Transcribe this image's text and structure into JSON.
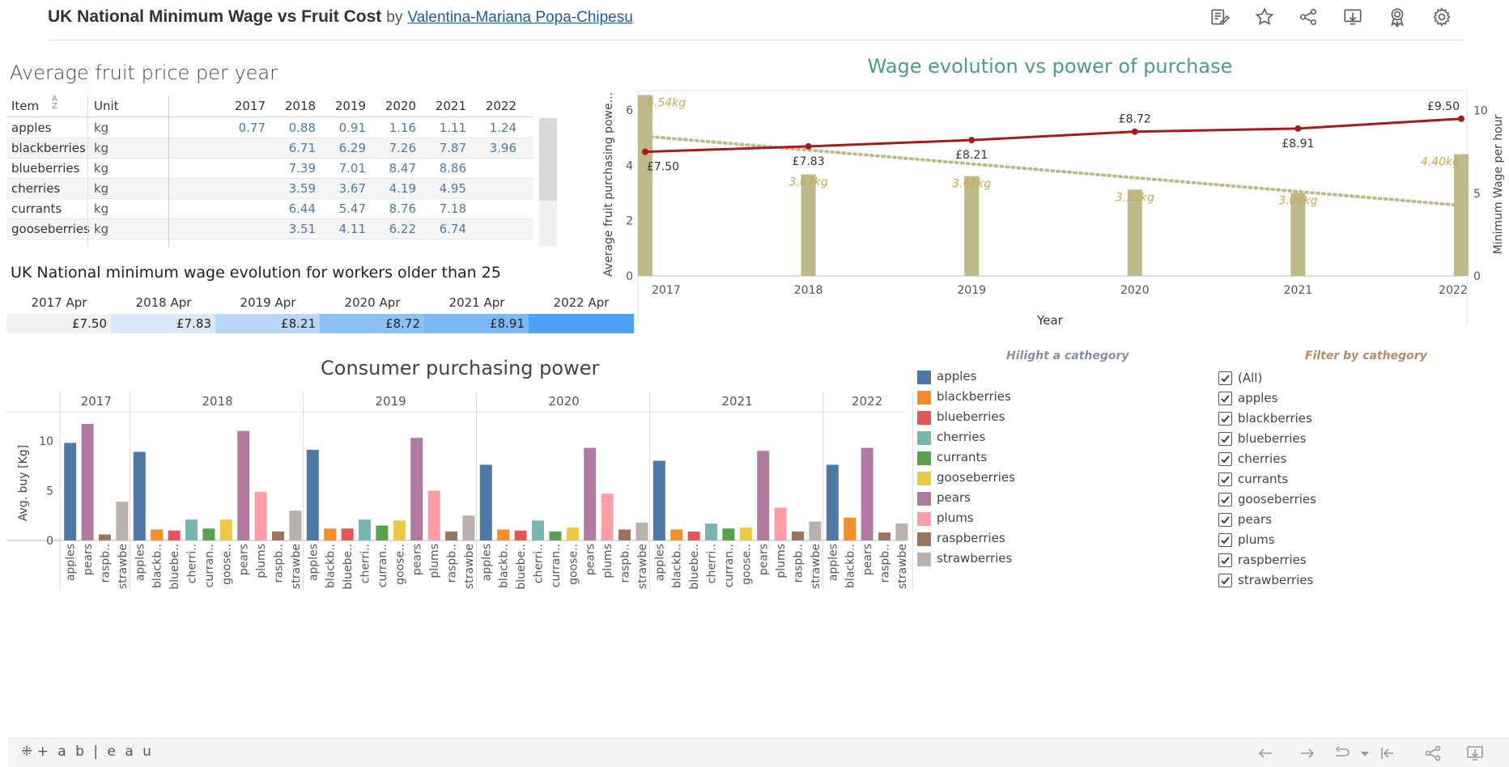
{
  "header": {
    "title": "UK National Minimum Wage vs Fruit Cost",
    "by": "by",
    "author": "Valentina-Mariana Popa-Chipesu"
  },
  "colors": {
    "apples": "#4e79a7",
    "blackberries": "#f28e2b",
    "blueberries": "#e15759",
    "cherries": "#76b7b2",
    "currants": "#59a14f",
    "gooseberries": "#edc948",
    "pears": "#b07aa1",
    "plums": "#ff9da7",
    "raspberries": "#9c755f",
    "strawberries": "#bab0ac",
    "wage_line": "#a61c1c",
    "bar_olive": "#bfb98a",
    "label_gold": "#c9a94c"
  },
  "price_table": {
    "title": "Average fruit price per year",
    "columns": [
      "Item",
      "Unit",
      "2017",
      "2018",
      "2019",
      "2020",
      "2021",
      "2022"
    ],
    "rows": [
      {
        "item": "apples",
        "unit": "kg",
        "values": [
          "0.77",
          "0.88",
          "0.91",
          "1.16",
          "1.11",
          "1.24"
        ]
      },
      {
        "item": "blackberries",
        "unit": "kg",
        "values": [
          "",
          "6.71",
          "6.29",
          "7.26",
          "7.87",
          "3.96"
        ]
      },
      {
        "item": "blueberries",
        "unit": "kg",
        "values": [
          "",
          "7.39",
          "7.01",
          "8.47",
          "8.86",
          ""
        ]
      },
      {
        "item": "cherries",
        "unit": "kg",
        "values": [
          "",
          "3.59",
          "3.67",
          "4.19",
          "4.95",
          ""
        ]
      },
      {
        "item": "currants",
        "unit": "kg",
        "values": [
          "",
          "6.44",
          "5.47",
          "8.76",
          "7.18",
          ""
        ]
      },
      {
        "item": "gooseberries",
        "unit": "kg",
        "values": [
          "",
          "3.51",
          "4.11",
          "6.22",
          "6.74",
          ""
        ]
      }
    ]
  },
  "wage_table": {
    "title": "UK National minimum wage evolution for workers older than 25",
    "columns": [
      {
        "label": "2017 Apr",
        "value": "£7.50",
        "bg": "#f2f2f2"
      },
      {
        "label": "2018 Apr",
        "value": "£7.83",
        "bg": "#dbe8f7"
      },
      {
        "label": "2019 Apr",
        "value": "£8.21",
        "bg": "#b8d6f7"
      },
      {
        "label": "2020 Apr",
        "value": "£8.72",
        "bg": "#8cc1f7"
      },
      {
        "label": "2021 Apr",
        "value": "£8.91",
        "bg": "#7ab8f7"
      },
      {
        "label": "2022 Apr",
        "value": "",
        "bg": "#4fa0f7"
      }
    ]
  },
  "wage_chart": {
    "title": "Wage evolution vs power of purchase",
    "ylabel_left": "Average fruit purchasing powe...",
    "ylabel_right": "Minimum Wage per hour",
    "xlabel": "Year",
    "chart_data": {
      "type": "bar",
      "categories": [
        "2017",
        "2018",
        "2019",
        "2020",
        "2021",
        "2022"
      ],
      "series": [
        {
          "values": [
            6.54,
            3.67,
            3.61,
            3.12,
            3.0,
            4.4
          ]
        },
        {
          "values": [
            7.5,
            7.83,
            8.21,
            8.72,
            8.91,
            9.5
          ]
        }
      ],
      "bar_labels": [
        "6.54kg",
        "3.67kg",
        "3.61kg",
        "3.12kg",
        "3.00kg",
        "4.40kg"
      ],
      "line_labels": [
        "£7.50",
        "£7.83",
        "£8.21",
        "£8.72",
        "£8.91",
        "£9.50"
      ],
      "trend": [
        5.05,
        2.55
      ],
      "left_ylim": [
        0,
        6.7
      ],
      "left_ticks": [
        "0",
        "2",
        "4",
        "6"
      ],
      "right_ylim": [
        0,
        11.2
      ],
      "right_ticks": [
        "0",
        "5",
        "10"
      ]
    }
  },
  "purchasing_chart": {
    "title": "Consumer purchasing power",
    "ylabel": "Avg. buy [Kg]",
    "y_ticks": [
      "0",
      "5",
      "10"
    ],
    "chart_data": {
      "type": "bar",
      "ylim": [
        0,
        13
      ],
      "groups": [
        {
          "year": "2017",
          "bars": [
            {
              "fruit": "apples",
              "value": 9.8
            },
            {
              "fruit": "pears",
              "value": 11.7
            },
            {
              "fruit": "raspberries",
              "value": 0.6
            },
            {
              "fruit": "strawberries",
              "value": 3.9
            }
          ]
        },
        {
          "year": "2018",
          "bars": [
            {
              "fruit": "apples",
              "value": 8.9
            },
            {
              "fruit": "blackberries",
              "value": 1.1
            },
            {
              "fruit": "blueberries",
              "value": 1.0
            },
            {
              "fruit": "cherries",
              "value": 2.1
            },
            {
              "fruit": "currants",
              "value": 1.2
            },
            {
              "fruit": "gooseberries",
              "value": 2.1
            },
            {
              "fruit": "pears",
              "value": 11.0
            },
            {
              "fruit": "plums",
              "value": 4.9
            },
            {
              "fruit": "raspberries",
              "value": 0.9
            },
            {
              "fruit": "strawberries",
              "value": 3.0
            }
          ]
        },
        {
          "year": "2019",
          "bars": [
            {
              "fruit": "apples",
              "value": 9.1
            },
            {
              "fruit": "blackberries",
              "value": 1.2
            },
            {
              "fruit": "blueberries",
              "value": 1.2
            },
            {
              "fruit": "cherries",
              "value": 2.1
            },
            {
              "fruit": "currants",
              "value": 1.5
            },
            {
              "fruit": "gooseberries",
              "value": 2.0
            },
            {
              "fruit": "pears",
              "value": 10.3
            },
            {
              "fruit": "plums",
              "value": 5.0
            },
            {
              "fruit": "raspberries",
              "value": 0.9
            },
            {
              "fruit": "strawberries",
              "value": 2.5
            }
          ]
        },
        {
          "year": "2020",
          "bars": [
            {
              "fruit": "apples",
              "value": 7.6
            },
            {
              "fruit": "blackberries",
              "value": 1.1
            },
            {
              "fruit": "blueberries",
              "value": 1.0
            },
            {
              "fruit": "cherries",
              "value": 2.0
            },
            {
              "fruit": "currants",
              "value": 0.9
            },
            {
              "fruit": "gooseberries",
              "value": 1.3
            },
            {
              "fruit": "pears",
              "value": 9.3
            },
            {
              "fruit": "plums",
              "value": 4.7
            },
            {
              "fruit": "raspberries",
              "value": 1.1
            },
            {
              "fruit": "strawberries",
              "value": 1.8
            }
          ]
        },
        {
          "year": "2021",
          "bars": [
            {
              "fruit": "apples",
              "value": 8.0
            },
            {
              "fruit": "blackberries",
              "value": 1.1
            },
            {
              "fruit": "blueberries",
              "value": 0.9
            },
            {
              "fruit": "cherries",
              "value": 1.7
            },
            {
              "fruit": "currants",
              "value": 1.2
            },
            {
              "fruit": "gooseberries",
              "value": 1.3
            },
            {
              "fruit": "pears",
              "value": 9.0
            },
            {
              "fruit": "plums",
              "value": 3.3
            },
            {
              "fruit": "raspberries",
              "value": 0.9
            },
            {
              "fruit": "strawberries",
              "value": 1.9
            }
          ]
        },
        {
          "year": "2022",
          "bars": [
            {
              "fruit": "apples",
              "value": 7.6
            },
            {
              "fruit": "blackberries",
              "value": 2.3
            },
            {
              "fruit": "pears",
              "value": 9.3
            },
            {
              "fruit": "raspberries",
              "value": 0.8
            },
            {
              "fruit": "strawberries",
              "value": 1.7
            }
          ]
        }
      ],
      "tick_abbrev": {
        "apples": "apples",
        "blackberries": "blackb..",
        "blueberries": "bluebe..",
        "cherries": "cherri..",
        "currants": "curran..",
        "gooseberries": "goose..",
        "pears": "pears",
        "plums": "plums",
        "raspberries": "raspb..",
        "strawberries": "strawbe"
      }
    }
  },
  "legend": {
    "title": "Hilight a cathegory",
    "items": [
      "apples",
      "blackberries",
      "blueberries",
      "cherries",
      "currants",
      "gooseberries",
      "pears",
      "plums",
      "raspberries",
      "strawberries"
    ]
  },
  "filter": {
    "title": "Filter by cathegory",
    "items": [
      "(All)",
      "apples",
      "blackberries",
      "blueberries",
      "cherries",
      "currants",
      "gooseberries",
      "pears",
      "plums",
      "raspberries",
      "strawberries"
    ]
  },
  "footer": {
    "logo": "+ a b | e a u"
  }
}
